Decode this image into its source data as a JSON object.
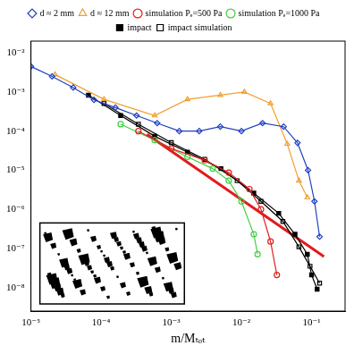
{
  "chart_data": {
    "type": "scatter",
    "log": true,
    "grid": false,
    "legend": "top",
    "x_label": "m/Mₜₒₜ",
    "xlim": [
      1e-05,
      0.3
    ],
    "ylim": [
      2.5e-09,
      0.02
    ],
    "xticks": [
      {
        "value": 1e-05,
        "label": "10⁻⁵"
      },
      {
        "value": 0.0001,
        "label": "10⁻⁴"
      },
      {
        "value": 0.001,
        "label": "10⁻³"
      },
      {
        "value": 0.01,
        "label": "10⁻²"
      },
      {
        "value": 0.1,
        "label": "10⁻¹"
      }
    ],
    "yticks": [
      {
        "value": 1e-08,
        "label": "10⁻⁸"
      },
      {
        "value": 1e-07,
        "label": "10⁻⁷"
      },
      {
        "value": 1e-06,
        "label": "10⁻⁶"
      },
      {
        "value": 1e-05,
        "label": "10⁻⁵"
      },
      {
        "value": 0.0001,
        "label": "10⁻⁴"
      },
      {
        "value": 0.001,
        "label": "10⁻³"
      },
      {
        "value": 0.01,
        "label": "10⁻²"
      }
    ],
    "series": [
      {
        "name": "d ≈ 2 mm",
        "color": "#2040c0",
        "marker": "diamond_open",
        "line_style": "solid",
        "x": [
          1e-05,
          2e-05,
          4e-05,
          7.9e-05,
          0.00016,
          0.00032,
          0.00063,
          0.0013,
          0.0025,
          0.005,
          0.01,
          0.02,
          0.04,
          0.063,
          0.089,
          0.11,
          0.13
        ],
        "values": [
          0.0045,
          0.0025,
          0.0013,
          0.00063,
          0.0004,
          0.00025,
          0.00016,
          0.0001,
          0.0001,
          0.00013,
          0.0001,
          0.00016,
          0.00013,
          5e-05,
          1e-05,
          1.6e-06,
          2e-07
        ]
      },
      {
        "name": "d ≈ 12 mm",
        "color": "#f0a030",
        "marker": "triangle_open",
        "line_style": "solid",
        "x": [
          2.2e-05,
          0.00011,
          0.00058,
          0.0017,
          0.005,
          0.011,
          0.026,
          0.045,
          0.066,
          0.087
        ],
        "values": [
          0.0028,
          0.00065,
          0.00025,
          0.00065,
          0.00083,
          0.001,
          0.00051,
          4.7e-05,
          5.4e-06,
          2e-06
        ]
      },
      {
        "name": "simulation Pₑ=500 Pa",
        "color": "#e02020",
        "marker": "circle_open",
        "line_style": "solid",
        "x": [
          0.00034,
          0.001,
          0.003,
          0.0066,
          0.013,
          0.019,
          0.026,
          0.032
        ],
        "values": [
          0.0001,
          3.6e-05,
          1.8e-05,
          8.7e-06,
          3.3e-06,
          1e-06,
          1.5e-07,
          2.1e-08
        ]
      },
      {
        "name": "simulation Pₑ=1000 Pa",
        "color": "#40d040",
        "marker": "circle_open",
        "line_style": "solid",
        "x": [
          0.00019,
          0.00058,
          0.0017,
          0.0039,
          0.0066,
          0.01,
          0.015,
          0.017
        ],
        "values": [
          0.00015,
          5.9e-05,
          2.2e-05,
          1.1e-05,
          5.4e-06,
          1.6e-06,
          2.3e-07,
          7.1e-08
        ]
      },
      {
        "name": "impact",
        "color": "#000000",
        "marker": "square",
        "line_style": "solid",
        "x": [
          6.6e-05,
          0.00019,
          0.00058,
          0.0017,
          0.0051,
          0.015,
          0.034,
          0.058,
          0.087,
          0.1,
          0.12
        ],
        "values": [
          0.00083,
          0.00025,
          7.4e-05,
          2.9e-05,
          1.1e-05,
          2.6e-06,
          7.9e-07,
          2.3e-07,
          7.1e-08,
          2.1e-08,
          9.1e-09
        ]
      },
      {
        "name": "impact simulation",
        "color": "#000000",
        "marker": "square_open",
        "line_style": "solid",
        "x": [
          0.00011,
          0.00034,
          0.001,
          0.003,
          0.0087,
          0.019,
          0.039,
          0.066,
          0.095,
          0.13
        ],
        "values": [
          0.00051,
          0.00015,
          5.1e-05,
          1.9e-05,
          5.4e-06,
          1.6e-06,
          4.9e-07,
          1.1e-07,
          3.5e-08,
          1.3e-08
        ]
      },
      {
        "color": "#e41a1c",
        "marker": "none",
        "line_style": "solid",
        "x": [
          0.00045,
          0.15
        ],
        "values": [
          8.3e-05,
          6.2e-08
        ]
      }
    ]
  }
}
